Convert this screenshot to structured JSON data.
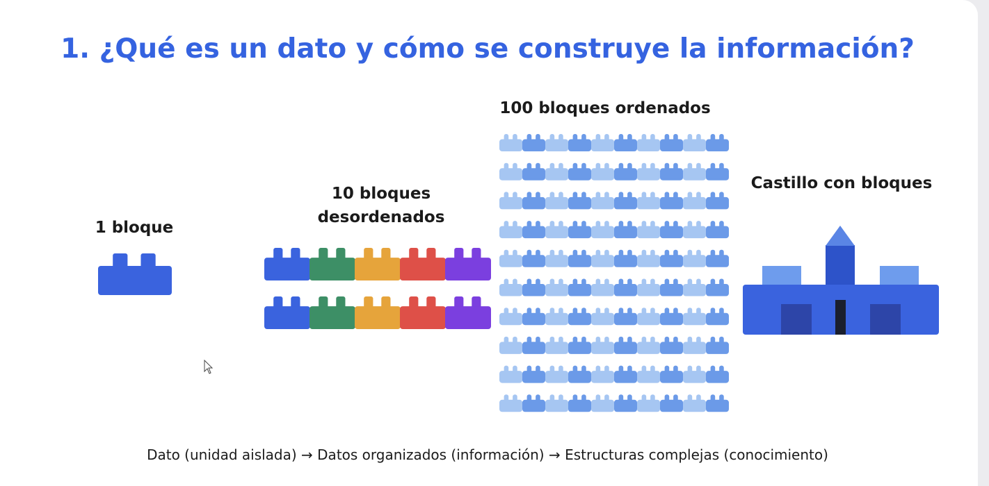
{
  "title": "1. ¿Qué es un dato y cómo se construye la información?",
  "stages": {
    "one": {
      "label": "1 bloque",
      "count": 1,
      "color": "#3a63de"
    },
    "ten": {
      "label": "10 bloques desordenados",
      "count": 10,
      "colors": [
        "#3a63de",
        "#3d8f66",
        "#e6a43b",
        "#de5048",
        "#7b3fdf"
      ]
    },
    "hundred": {
      "label": "100 bloques ordenados",
      "count": 100,
      "colors": {
        "light": "#a6c6f2",
        "dark": "#6b9ae8"
      }
    },
    "castle": {
      "label": "Castillo con bloques",
      "colors": {
        "body": "#3a63de",
        "tower": "#2d53c9",
        "towerTop": "#5a85e5",
        "battlement": "#6e9ced",
        "door": "#2d45a8",
        "gate": "#1a1f2e"
      }
    }
  },
  "caption": "Dato (unidad aislada) → Datos organizados (información) → Estructuras complejas (conocimiento)"
}
